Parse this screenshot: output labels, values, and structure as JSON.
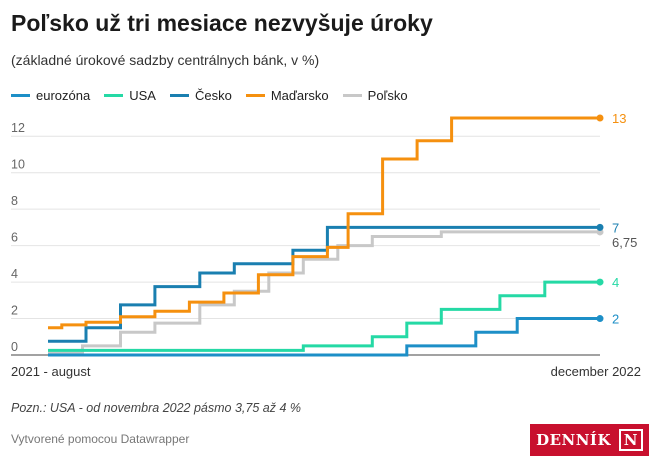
{
  "title": "Poľsko už tri mesiace nezvyšuje úroky",
  "subtitle": "(základné úrokové sadzby centrálnych bánk, v %)",
  "note": "Pozn.: USA - od novembra 2022 pásmo 3,75 až 4 %",
  "credit": "Vytvorené pomocou Datawrapper",
  "logo": "DENNÍK N",
  "chart_data": {
    "type": "line",
    "x_labels": [
      "2021 - august",
      "december 2022"
    ],
    "x_months": [
      "2021-08",
      "2021-09",
      "2021-10",
      "2021-11",
      "2021-12",
      "2022-01",
      "2022-02",
      "2022-03",
      "2022-04",
      "2022-05",
      "2022-06",
      "2022-07",
      "2022-08",
      "2022-09",
      "2022-10",
      "2022-11",
      "2022-12"
    ],
    "ylim": [
      0,
      13
    ],
    "yticks": [
      0,
      2,
      4,
      6,
      8,
      10,
      12
    ],
    "grid": true,
    "legend_position": "top-left",
    "series": [
      {
        "name": "eurozóna",
        "color": "#1d8fc7",
        "end_label": "2",
        "steps": [
          [
            0,
            0
          ],
          [
            10.4,
            0.5
          ],
          [
            12.4,
            1.25
          ],
          [
            13.6,
            2
          ]
        ]
      },
      {
        "name": "USA",
        "color": "#25d9a5",
        "end_label": "4",
        "steps": [
          [
            0,
            0.25
          ],
          [
            7.4,
            0.5
          ],
          [
            9.4,
            1
          ],
          [
            10.4,
            1.75
          ],
          [
            11.4,
            2.5
          ],
          [
            13.1,
            3.25
          ],
          [
            14.4,
            4
          ]
        ]
      },
      {
        "name": "Česko",
        "color": "#1a7fb0",
        "end_label": "7",
        "steps": [
          [
            0,
            0.75
          ],
          [
            1.1,
            1.5
          ],
          [
            2.1,
            2.75
          ],
          [
            3.1,
            3.75
          ],
          [
            4.4,
            4.5
          ],
          [
            5.4,
            5
          ],
          [
            7.1,
            5.75
          ],
          [
            8.1,
            7
          ]
        ]
      },
      {
        "name": "Maďarsko",
        "color": "#f5900f",
        "end_label": "13",
        "steps": [
          [
            0,
            1.5
          ],
          [
            0.4,
            1.65
          ],
          [
            1.1,
            1.8
          ],
          [
            2.1,
            2.1
          ],
          [
            3.1,
            2.4
          ],
          [
            4.1,
            2.9
          ],
          [
            5.1,
            3.4
          ],
          [
            6.1,
            4.4
          ],
          [
            7.1,
            5.4
          ],
          [
            8.1,
            5.9
          ],
          [
            8.7,
            7.75
          ],
          [
            9.7,
            10.75
          ],
          [
            10.7,
            11.75
          ],
          [
            11.7,
            13
          ]
        ]
      },
      {
        "name": "Poľsko",
        "color": "#c8c8c8",
        "end_label": "6,75",
        "steps": [
          [
            0,
            0.1
          ],
          [
            1.0,
            0.5
          ],
          [
            2.1,
            1.25
          ],
          [
            3.1,
            1.75
          ],
          [
            4.4,
            2.75
          ],
          [
            5.4,
            3.5
          ],
          [
            6.4,
            4.5
          ],
          [
            7.4,
            5.25
          ],
          [
            8.4,
            6
          ],
          [
            9.4,
            6.5
          ],
          [
            11.4,
            6.75
          ]
        ]
      }
    ]
  }
}
